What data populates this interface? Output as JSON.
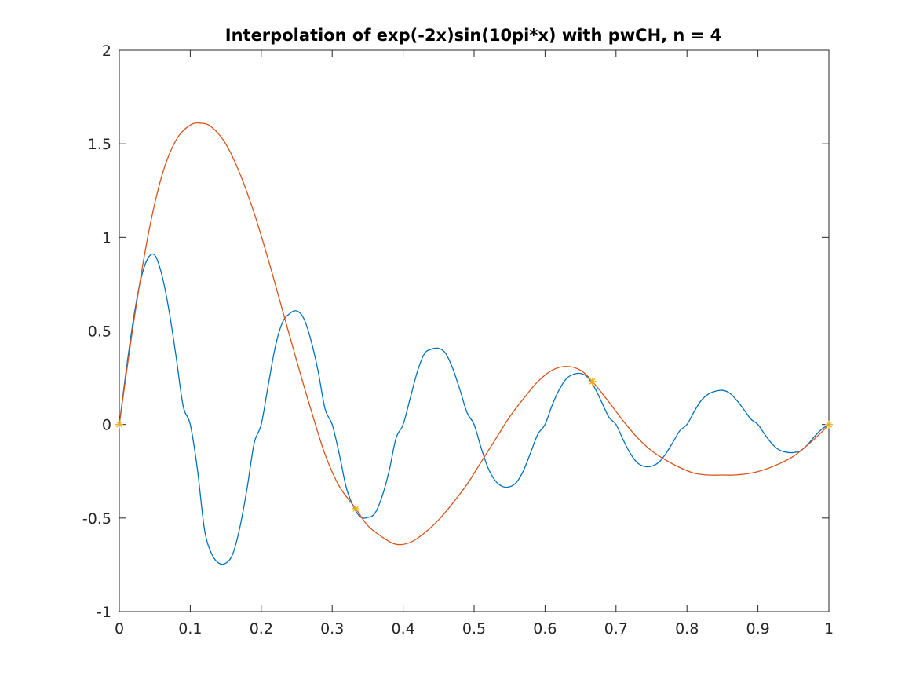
{
  "chart_data": {
    "type": "line",
    "title": "Interpolation of exp(-2x)sin(10pi*x) with pwCH, n =  4",
    "xlabel": "",
    "ylabel": "",
    "xlim": [
      0,
      1
    ],
    "ylim": [
      -1,
      2
    ],
    "xticks": [
      0,
      0.1,
      0.2,
      0.3,
      0.4,
      0.5,
      0.6,
      0.7,
      0.8,
      0.9,
      1
    ],
    "xtick_labels": [
      "0",
      "0.1",
      "0.2",
      "0.3",
      "0.4",
      "0.5",
      "0.6",
      "0.7",
      "0.8",
      "0.9",
      "1"
    ],
    "yticks": [
      -1,
      -0.5,
      0,
      0.5,
      1,
      1.5,
      2
    ],
    "ytick_labels": [
      "-1",
      "-0.5",
      "0",
      "0.5",
      "1",
      "1.5",
      "2"
    ],
    "grid": false,
    "legend": "none",
    "series": [
      {
        "kind": "line",
        "color": "#0072BD",
        "x": [
          0,
          0.01,
          0.02,
          0.03,
          0.04,
          0.05,
          0.06,
          0.07,
          0.08,
          0.09,
          0.1,
          0.11,
          0.12,
          0.13,
          0.14,
          0.15,
          0.16,
          0.17,
          0.18,
          0.19,
          0.2,
          0.21,
          0.22,
          0.23,
          0.24,
          0.25,
          0.26,
          0.27,
          0.28,
          0.29,
          0.3,
          0.31,
          0.32,
          0.33,
          0.34,
          0.35,
          0.36,
          0.37,
          0.38,
          0.39,
          0.4,
          0.41,
          0.42,
          0.43,
          0.44,
          0.45,
          0.46,
          0.47,
          0.48,
          0.49,
          0.5,
          0.51,
          0.52,
          0.53,
          0.54,
          0.55,
          0.56,
          0.57,
          0.58,
          0.59,
          0.6,
          0.61,
          0.62,
          0.63,
          0.64,
          0.65,
          0.66,
          0.67,
          0.68,
          0.69,
          0.7,
          0.71,
          0.72,
          0.73,
          0.74,
          0.75,
          0.76,
          0.77,
          0.78,
          0.79,
          0.8,
          0.81,
          0.82,
          0.83,
          0.84,
          0.85,
          0.86,
          0.87,
          0.88,
          0.89,
          0.9,
          0.91,
          0.92,
          0.93,
          0.94,
          0.95,
          0.96,
          0.97,
          0.98,
          0.99,
          1
        ],
        "y": [
          0,
          0.297,
          0.564,
          0.771,
          0.886,
          0.905,
          0.799,
          0.61,
          0.364,
          0.098,
          0,
          -0.237,
          -0.56,
          -0.69,
          -0.74,
          -0.741,
          -0.691,
          -0.548,
          -0.343,
          -0.101,
          0,
          0.213,
          0.418,
          0.546,
          0.592,
          0.607,
          0.566,
          0.451,
          0.288,
          0.083,
          0,
          -0.158,
          -0.339,
          -0.439,
          -0.495,
          -0.497,
          -0.476,
          -0.388,
          -0.252,
          -0.073,
          0,
          0.141,
          0.282,
          0.378,
          0.403,
          0.407,
          0.38,
          0.298,
          0.186,
          0.064,
          0,
          -0.126,
          -0.235,
          -0.301,
          -0.331,
          -0.333,
          -0.308,
          -0.243,
          -0.147,
          -0.051,
          0,
          0.103,
          0.186,
          0.245,
          0.268,
          0.273,
          0.253,
          0.196,
          0.118,
          0.039,
          0,
          -0.081,
          -0.154,
          -0.204,
          -0.224,
          -0.223,
          -0.203,
          -0.157,
          -0.096,
          -0.033,
          0,
          0.068,
          0.128,
          0.162,
          0.178,
          0.183,
          0.168,
          0.13,
          0.081,
          0.029,
          0,
          -0.055,
          -0.104,
          -0.136,
          -0.148,
          -0.15,
          -0.14,
          -0.108,
          -0.063,
          -0.025,
          0
        ]
      },
      {
        "kind": "line",
        "color": "#D95319",
        "x": [
          0,
          0.02,
          0.04,
          0.06,
          0.08,
          0.1,
          0.115,
          0.13,
          0.15,
          0.17,
          0.19,
          0.21,
          0.23,
          0.25,
          0.27,
          0.29,
          0.31,
          0.3333,
          0.35,
          0.37,
          0.39,
          0.41,
          0.43,
          0.45,
          0.47,
          0.49,
          0.51,
          0.53,
          0.55,
          0.57,
          0.59,
          0.61,
          0.63,
          0.65,
          0.6667,
          0.69,
          0.71,
          0.73,
          0.75,
          0.77,
          0.79,
          0.81,
          0.83,
          0.85,
          0.867,
          0.89,
          0.91,
          0.93,
          0.95,
          0.97,
          0.99,
          1
        ],
        "y": [
          0,
          0.54,
          1.0,
          1.33,
          1.52,
          1.6,
          1.61,
          1.59,
          1.5,
          1.34,
          1.13,
          0.88,
          0.61,
          0.34,
          0.08,
          -0.16,
          -0.33,
          -0.45,
          -0.54,
          -0.6,
          -0.64,
          -0.63,
          -0.58,
          -0.51,
          -0.42,
          -0.32,
          -0.2,
          -0.08,
          0.04,
          0.14,
          0.23,
          0.29,
          0.31,
          0.29,
          0.23,
          0.12,
          0.02,
          -0.07,
          -0.14,
          -0.19,
          -0.23,
          -0.26,
          -0.27,
          -0.27,
          -0.27,
          -0.26,
          -0.24,
          -0.21,
          -0.17,
          -0.11,
          -0.04,
          0
        ]
      },
      {
        "kind": "markers",
        "marker": "*",
        "color": "#EDB120",
        "x": [
          0,
          0.3333,
          0.6667,
          1
        ],
        "y": [
          0,
          -0.45,
          0.23,
          0
        ]
      }
    ]
  }
}
